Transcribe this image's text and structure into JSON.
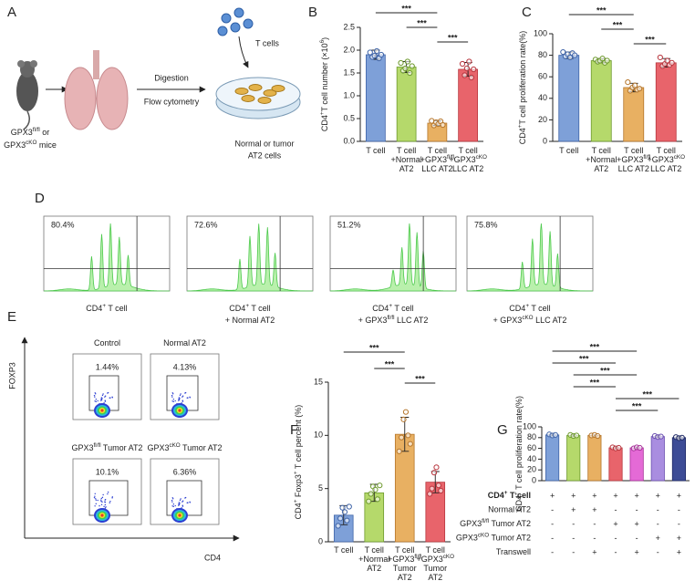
{
  "panel_a": {
    "label": "A",
    "t_cells": "T cells",
    "step_1": "Digestion",
    "step_2": "Flow cytometry",
    "mice": [
      [
        "GPX3",
        "fl/fl",
        " or"
      ],
      [
        "GPX3",
        "cKO",
        " mice"
      ]
    ],
    "cells": [
      "Normal or tumor",
      "AT2 cells"
    ]
  },
  "panel_d": {
    "label": "D",
    "histograms": [
      {
        "percent": "80.4%",
        "caption": [
          [
            "CD4",
            "+",
            " T cell"
          ]
        ]
      },
      {
        "percent": "72.6%",
        "caption": [
          [
            "CD4",
            "+",
            " T cell"
          ],
          [
            "+ Normal AT2"
          ]
        ]
      },
      {
        "percent": "51.2%",
        "caption": [
          [
            "CD4",
            "+",
            " T cell"
          ],
          [
            "+ GPX3",
            "fl/fl",
            " LLC AT2"
          ]
        ]
      },
      {
        "percent": "75.8%",
        "caption": [
          [
            "CD4",
            "+",
            " T cell"
          ],
          [
            "+ GPX3",
            "cKO",
            " LLC AT2"
          ]
        ]
      }
    ]
  },
  "panel_e": {
    "label": "E",
    "y_axis": "FOXP3",
    "x_axis": "CD4",
    "plots": [
      {
        "title": [
          "Control"
        ],
        "percent": "1.44%"
      },
      {
        "title": [
          "Normal AT2"
        ],
        "percent": "4.13%"
      },
      {
        "title": [
          "GPX3",
          "fl/fl",
          " Tumor AT2"
        ],
        "percent": "10.1%"
      },
      {
        "title": [
          "GPX3",
          "cKO",
          " Tumor AT2"
        ],
        "percent": "6.36%"
      }
    ]
  },
  "chart_data": [
    {
      "type": "bar",
      "label": "B",
      "y_label": [
        "CD4",
        "+",
        "T cell number (×10",
        "6",
        ")"
      ],
      "categories": [
        [
          [
            "T cell"
          ]
        ],
        [
          [
            "T cell"
          ],
          [
            "+Normal"
          ],
          [
            "AT2"
          ]
        ],
        [
          [
            "T cell"
          ],
          [
            "+GPX3",
            "fl/fl"
          ],
          [
            "LLC AT2"
          ]
        ],
        [
          [
            "T cell"
          ],
          [
            "+GPX3",
            "cKO"
          ],
          [
            "LLC AT2"
          ]
        ]
      ],
      "values": [
        1.9,
        1.63,
        0.4,
        1.58
      ],
      "errors": [
        0.1,
        0.12,
        0.05,
        0.15
      ],
      "points": [
        [
          1.95,
          1.85,
          1.88,
          1.98,
          1.82,
          1.9
        ],
        [
          1.72,
          1.55,
          1.6,
          1.75,
          1.5,
          1.65
        ],
        [
          0.45,
          0.35,
          0.42,
          0.38,
          0.44,
          0.36
        ],
        [
          1.7,
          1.45,
          1.6,
          1.75,
          1.4,
          1.58
        ]
      ],
      "colors": [
        "#7ea0d8",
        "#b5d96b",
        "#e8b062",
        "#e8646b"
      ],
      "edge_colors": [
        "#3f64a8",
        "#6e9a2e",
        "#b5752a",
        "#b8363e"
      ],
      "ylim": [
        0,
        2.5
      ],
      "yticks": [
        {
          "value": 0,
          "label": "0.0"
        },
        0.5,
        {
          "value": 1,
          "label": "1.0"
        },
        1.5,
        {
          "value": 2,
          "label": "2.0"
        },
        2.5
      ],
      "significance": [
        {
          "from": 0,
          "to": 2,
          "label": "***"
        },
        {
          "from": 1,
          "to": 2,
          "label": "***"
        },
        {
          "from": 2,
          "to": 3,
          "label": "***"
        }
      ]
    },
    {
      "type": "bar",
      "label": "C",
      "y_label": [
        "CD4",
        "+",
        "T cell proliferation rate(%)"
      ],
      "categories": [
        [
          [
            "T cell"
          ]
        ],
        [
          [
            "T cell"
          ],
          [
            "+Normal"
          ],
          [
            "AT2"
          ]
        ],
        [
          [
            "T cell"
          ],
          [
            "+GPX3",
            "fl/fl"
          ],
          [
            "LLC AT2"
          ]
        ],
        [
          [
            "T cell"
          ],
          [
            "+GPX3",
            "cKO"
          ],
          [
            "LLC AT2"
          ]
        ]
      ],
      "values": [
        80,
        75,
        50,
        73
      ],
      "errors": [
        3,
        2,
        4,
        4
      ],
      "points": [
        [
          83,
          79,
          81,
          78,
          82,
          80
        ],
        [
          76,
          74,
          75,
          77,
          73,
          75
        ],
        [
          55,
          47,
          50,
          52,
          48,
          49
        ],
        [
          78,
          70,
          72,
          75,
          71,
          73
        ]
      ],
      "colors": [
        "#7ea0d8",
        "#b5d96b",
        "#e8b062",
        "#e8646b"
      ],
      "edge_colors": [
        "#3f64a8",
        "#6e9a2e",
        "#b5752a",
        "#b8363e"
      ],
      "ylim": [
        0,
        100
      ],
      "yticks": [
        0,
        20,
        40,
        60,
        80,
        100
      ],
      "significance": [
        {
          "from": 0,
          "to": 2,
          "label": "***"
        },
        {
          "from": 1,
          "to": 2,
          "label": "***"
        },
        {
          "from": 2,
          "to": 3,
          "label": "***"
        }
      ]
    },
    {
      "type": "bar",
      "label": "F",
      "y_label": [
        "CD4",
        "+",
        " Foxp3",
        "+",
        " T cell percent (%)"
      ],
      "categories": [
        [
          [
            "T cell"
          ]
        ],
        [
          [
            "T cell"
          ],
          [
            "+Normal"
          ],
          [
            "AT2"
          ]
        ],
        [
          [
            "T cell"
          ],
          [
            "+GPX3",
            "fl/fl"
          ],
          [
            "Tumor"
          ],
          [
            "AT2"
          ]
        ],
        [
          [
            "T cell"
          ],
          [
            "+GPX3",
            "cKO"
          ],
          [
            "Tumor"
          ],
          [
            "AT2"
          ]
        ]
      ],
      "values": [
        2.5,
        4.6,
        10.1,
        5.6
      ],
      "errors": [
        0.9,
        0.8,
        1.6,
        1.0
      ],
      "points": [
        [
          1.5,
          2.2,
          3.2,
          2.8,
          2.0,
          3.3
        ],
        [
          3.8,
          4.5,
          5.2,
          4.9,
          4.0,
          5.3
        ],
        [
          8.5,
          9.8,
          11.5,
          12.2,
          10.0,
          9.2
        ],
        [
          4.5,
          5.0,
          6.5,
          7.0,
          5.3,
          4.8
        ]
      ],
      "colors": [
        "#7ea0d8",
        "#b5d96b",
        "#e8b062",
        "#e8646b"
      ],
      "edge_colors": [
        "#3f64a8",
        "#6e9a2e",
        "#b5752a",
        "#b8363e"
      ],
      "ylim": [
        0,
        15
      ],
      "yticks": [
        0,
        5,
        10,
        15
      ],
      "significance": [
        {
          "from": 0,
          "to": 2,
          "label": "***"
        },
        {
          "from": 1,
          "to": 2,
          "label": "***"
        },
        {
          "from": 2,
          "to": 3,
          "label": "***"
        }
      ]
    },
    {
      "type": "bar",
      "label": "G",
      "y_label": [
        "CD4",
        "+",
        " T cell proliferation rate(%)"
      ],
      "values": [
        85,
        84,
        84,
        61,
        61,
        82,
        80
      ],
      "errors": [
        1.5,
        1.5,
        1,
        1.5,
        1.5,
        2,
        2
      ],
      "points": [
        [
          86,
          84,
          85
        ],
        [
          85,
          83,
          84
        ],
        [
          84,
          85,
          83
        ],
        [
          62,
          60,
          61
        ],
        [
          60,
          62,
          61
        ],
        [
          83,
          81,
          82
        ],
        [
          81,
          79,
          80
        ]
      ],
      "colors": [
        "#7ea0d8",
        "#b5d96b",
        "#e8b062",
        "#e8646b",
        "#e46ad6",
        "#a98de0",
        "#3d4c96"
      ],
      "edge_colors": [
        "#3f64a8",
        "#6e9a2e",
        "#b5752a",
        "#b8363e",
        "#a8309a",
        "#6b4fb0",
        "#1f2a66"
      ],
      "ylim": [
        0,
        100
      ],
      "yticks": [
        0,
        20,
        40,
        60,
        80,
        100
      ],
      "significance": [
        {
          "from": 0,
          "to": 4,
          "label": "***"
        },
        {
          "from": 0,
          "to": 3,
          "label": "***"
        },
        {
          "from": 1,
          "to": 4,
          "label": "***"
        },
        {
          "from": 1,
          "to": 3,
          "label": "***"
        },
        {
          "from": 3,
          "to": 6,
          "label": "***"
        },
        {
          "from": 3,
          "to": 5,
          "label": "***"
        }
      ],
      "conditions": [
        {
          "name": [
            "CD4",
            "+",
            " T cell"
          ],
          "signs": [
            "+",
            "+",
            "+",
            "+",
            "+",
            "+",
            "+"
          ]
        },
        {
          "name": [
            "Normal AT2"
          ],
          "signs": [
            "-",
            "+",
            "+",
            "-",
            "-",
            "-",
            "-"
          ]
        },
        {
          "name": [
            "GPX3",
            "fl/fl",
            " Tumor AT2"
          ],
          "signs": [
            "-",
            "-",
            "-",
            "+",
            "+",
            "-",
            "-"
          ]
        },
        {
          "name": [
            "GPX3",
            "cKO",
            " Tumor AT2"
          ],
          "signs": [
            "-",
            "-",
            "-",
            "-",
            "-",
            "+",
            "+"
          ]
        },
        {
          "name": [
            "Transwell"
          ],
          "signs": [
            "-",
            "-",
            "+",
            "-",
            "+",
            "-",
            "+"
          ]
        }
      ]
    }
  ]
}
